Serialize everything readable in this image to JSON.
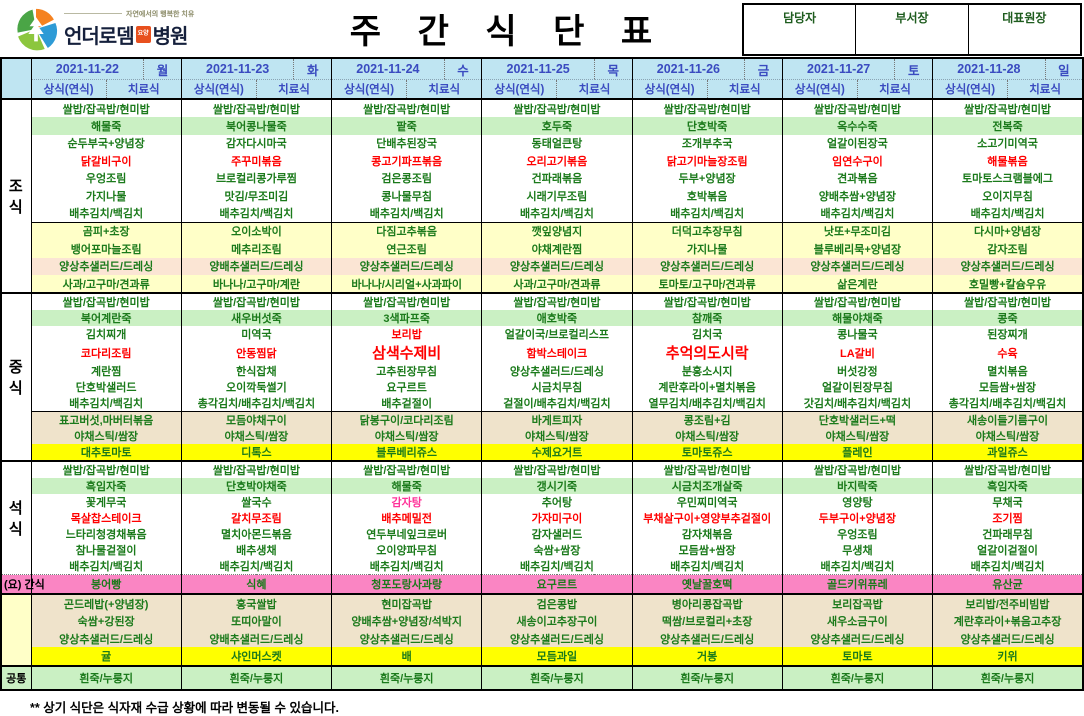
{
  "header": {
    "logo": {
      "tagline": "자연에서의 행복한 치유",
      "name_main": "언더로뎀",
      "name_badge": "요양",
      "name_suffix": "병원"
    },
    "title": "주 간 식 단 표",
    "approval": [
      "담당자",
      "부서장",
      "대표원장"
    ]
  },
  "days": [
    {
      "date": "2021-11-22",
      "dow": "월"
    },
    {
      "date": "2021-11-23",
      "dow": "화"
    },
    {
      "date": "2021-11-24",
      "dow": "수"
    },
    {
      "date": "2021-11-25",
      "dow": "목"
    },
    {
      "date": "2021-11-26",
      "dow": "금"
    },
    {
      "date": "2021-11-27",
      "dow": "토"
    },
    {
      "date": "2021-11-28",
      "dow": "일"
    }
  ],
  "meal_types": [
    "상식(연식)",
    "치료식"
  ],
  "colors": {
    "header_bg": "#BFE5F2",
    "header_text": "#3A4BC0",
    "item_text": "#1B7A1B",
    "special_text": "#FF0000",
    "accent_pink_text": "#FF3399",
    "porridge_bg": "#CAF0C3",
    "banchan_bg": "#FFFFC8",
    "salad_bg": "#FBE5D4",
    "tan_bg": "#EFE3CB",
    "juice_bg": "#FFFF00",
    "snack_bg": "#FA85C3"
  },
  "sections": [
    {
      "label": "조식",
      "label_style": "lbl-big",
      "label_bg": "w",
      "top": "solid",
      "rows": [
        {
          "bg": "w",
          "cells": [
            "쌀밥/잡곡밥/현미밥",
            "쌀밥/잡곡밥/현미밥",
            "쌀밥/잡곡밥/현미밥",
            "쌀밥/잡곡밥/현미밥",
            "쌀밥/잡곡밥/현미밥",
            "쌀밥/잡곡밥/현미밥",
            "쌀밥/잡곡밥/현미밥"
          ]
        },
        {
          "bg": "g",
          "cells": [
            "해물죽",
            "북어콩나물죽",
            "팥죽",
            "호두죽",
            "단호박죽",
            "옥수수죽",
            "전복죽"
          ]
        },
        {
          "bg": "w",
          "cells": [
            "순두부국+양념장",
            "감자다시마국",
            "단배추된장국",
            "동태얼큰탕",
            "조개부추국",
            "얼갈이된장국",
            "소고기미역국"
          ]
        },
        {
          "bg": "w",
          "fg": "red",
          "cells": [
            "닭갈비구이",
            "주꾸미볶음",
            "콩고기파프볶음",
            "오리고기볶음",
            "닭고기마늘장조림",
            "임연수구이",
            "해물볶음"
          ]
        },
        {
          "bg": "w",
          "cells": [
            "우엉조림",
            "브로컬리콩가루찜",
            "검은콩조림",
            "건파래볶음",
            "두부+양념장",
            "견과볶음",
            "토마토스크램블에그"
          ]
        },
        {
          "bg": "w",
          "cells": [
            "가지나물",
            "맛김/무조미김",
            "콩나물무침",
            "시래기무조림",
            "호박볶음",
            "양배추쌈+양념장",
            "오이지무침"
          ]
        },
        {
          "bg": "w",
          "cells": [
            "배추김치/백김치",
            "배추김치/백김치",
            "배추김치/백김치",
            "배추김치/백김치",
            "배추김치/백김치",
            "배추김치/백김치",
            "배추김치/백김치"
          ]
        },
        {
          "bg": "y",
          "div": true,
          "cells": [
            "곰피+초장",
            "오이소박이",
            "다짐고추볶음",
            "깻잎양념지",
            "더덕고추장무침",
            "낫또+무조미김",
            "다시마+양념장"
          ]
        },
        {
          "bg": "y",
          "cells": [
            "뱅어포마늘조림",
            "메추리조림",
            "연근조림",
            "야채계란찜",
            "가지나물",
            "블루베리묵+양념장",
            "감자조림"
          ]
        },
        {
          "bg": "p",
          "cells": [
            "양상추샐러드/드레싱",
            "양배추샐러드/드레싱",
            "양상추샐러드/드레싱",
            "양상추샐러드/드레싱",
            "양상추샐러드/드레싱",
            "양상추샐러드/드레싱",
            "양상추샐러드/드레싱"
          ]
        },
        {
          "bg": "y",
          "cells": [
            "사과/고구마/견과류",
            "바나나/고구마/계란",
            "바나나/시리얼+사과파이",
            "사과/고구마/견과류",
            "토마토/고구마/견과류",
            "삶은계란",
            "호밀빵+칼슘우유"
          ]
        }
      ]
    },
    {
      "label": "중식",
      "label_style": "lbl-big",
      "label_bg": "w",
      "top": "solid",
      "rows": [
        {
          "bg": "w",
          "cells": [
            "쌀밥/잡곡밥/현미밥",
            "쌀밥/잡곡밥/현미밥",
            "쌀밥/잡곡밥/현미밥",
            "쌀밥/잡곡밥/현미밥",
            "쌀밥/잡곡밥/현미밥",
            "쌀밥/잡곡밥/현미밥",
            "쌀밥/잡곡밥/현미밥"
          ]
        },
        {
          "bg": "g",
          "cells": [
            "북어계란죽",
            "새우버섯죽",
            "3색파프죽",
            "애호박죽",
            "참깨죽",
            "해물야채죽",
            "콩죽"
          ]
        },
        {
          "bg": "w",
          "cells": [
            "김치찌개",
            "미역국",
            {
              "t": "보리밥",
              "c": "red"
            },
            "얼갈이국/브로컬리스프",
            "김치국",
            "콩나물국",
            "된장찌개"
          ]
        },
        {
          "bg": "w",
          "fg": "red",
          "cells": [
            "코다리조림",
            "안동찜닭",
            {
              "t": "삼색수제비",
              "big": true
            },
            "함박스테이크",
            {
              "t": "추억의도시락",
              "big": true
            },
            "LA갈비",
            "수육"
          ]
        },
        {
          "bg": "w",
          "cells": [
            "계란찜",
            "한식잡채",
            "고추된장무침",
            "양상추샐러드/드레싱",
            "분홍소시지",
            "버섯강정",
            "멸치볶음"
          ]
        },
        {
          "bg": "w",
          "cells": [
            "단호박샐러드",
            "오이깍둑썰기",
            "요구르트",
            "시금치무침",
            "계란후라이+멸치볶음",
            "얼갈이된장무침",
            "모듬쌈+쌈장"
          ]
        },
        {
          "bg": "w",
          "cells": [
            "배추김치/백김치",
            "총각김치/배추김치/백김치",
            "배추겉절이",
            "겉절이/배추김치/백김치",
            "열무김치/배추김치/백김치",
            "갓김치/배추김치/백김치",
            "총각김치/배추김치/백김치"
          ]
        },
        {
          "bg": "t",
          "div": true,
          "cells": [
            "표고버섯,마버터볶음",
            "모듬야채구이",
            "닭봉구이/코다리조림",
            "바게트피자",
            "콩조림+김",
            "단호박샐러드+떡",
            "새송이들기름구이"
          ]
        },
        {
          "bg": "t",
          "cells": [
            "야채스틱/쌈장",
            "야채스틱/쌈장",
            "야채스틱/쌈장",
            "야채스틱/쌈장",
            "야채스틱/쌈장",
            "야채스틱/쌈장",
            "야채스틱/쌈장"
          ]
        },
        {
          "bg": "b",
          "cells": [
            "대추토마토",
            "디톡스",
            "블루베리쥬스",
            "수제요거트",
            "토마토쥬스",
            "플레인",
            "과일쥬스"
          ]
        }
      ]
    },
    {
      "label": "석식",
      "label_style": "lbl-big",
      "label_bg": "w",
      "top": "solid",
      "rows": [
        {
          "bg": "w",
          "cells": [
            "쌀밥/잡곡밥/현미밥",
            "쌀밥/잡곡밥/현미밥",
            "쌀밥/잡곡밥/현미밥",
            "쌀밥/잡곡밥/현미밥",
            "쌀밥/잡곡밥/현미밥",
            "쌀밥/잡곡밥/현미밥",
            "쌀밥/잡곡밥/현미밥"
          ]
        },
        {
          "bg": "g",
          "cells": [
            "흑임자죽",
            "단호박야채죽",
            "해물죽",
            "갱시기죽",
            "시금치조개살죽",
            "바지락죽",
            "흑임자죽"
          ]
        },
        {
          "bg": "w",
          "cells": [
            "꽃게무국",
            "쌀국수",
            {
              "t": "감자탕",
              "c": "pink"
            },
            "추어탕",
            "우민찌미역국",
            "영양탕",
            "무채국"
          ]
        },
        {
          "bg": "w",
          "fg": "red",
          "cells": [
            "목살찹스테이크",
            "갈치무조림",
            "배추메밀전",
            "가자미구이",
            "부채살구이+영양부추겉절이",
            "두부구이+양념장",
            "조기찜"
          ]
        },
        {
          "bg": "w",
          "cells": [
            "느타리청경채볶음",
            "멸치아몬드볶음",
            "연두부네잎크로버",
            "감자샐러드",
            "감자채볶음",
            "우엉조림",
            "건파래무침"
          ]
        },
        {
          "bg": "w",
          "cells": [
            "참나물겉절이",
            "배추생채",
            "오이양파무침",
            "숙쌈+쌈장",
            "모듬쌈+쌈장",
            "무생채",
            "얼갈이겉절이"
          ]
        },
        {
          "bg": "w",
          "cells": [
            "배추김치/백김치",
            "배추김치/백김치",
            "배추김치/백김치",
            "배추김치/백김치",
            "배추김치/백김치",
            "배추김치/백김치",
            "배추김치/백김치"
          ]
        }
      ]
    },
    {
      "label": "(요) 간식",
      "label_style": "lbl-snack",
      "label_bg": "k",
      "top": "dotted",
      "rows": [
        {
          "bg": "k",
          "cells": [
            "붕어빵",
            "식혜",
            "청포도랑사과랑",
            "요구르트",
            "옛날꿀호떡",
            "골드키위퓨레",
            "유산균"
          ]
        }
      ]
    },
    {
      "label": "",
      "label_style": "lbl-sm",
      "label_bg": "y",
      "top": "solid",
      "rows": [
        {
          "bg": "t",
          "cells": [
            "곤드레밥(+양념장)",
            "홍국쌀밥",
            "현미잡곡밥",
            "검은콩밥",
            "병아리콩잡곡밥",
            "보리잡곡밥",
            "보리밥/전주비빔밥"
          ]
        },
        {
          "bg": "t",
          "cells": [
            "숙쌈+강된장",
            "또띠아말이",
            "양배추쌈+양념장/석박지",
            "새송이고추장구이",
            "떡쌈/브로컬리+초장",
            "새우소금구이",
            "계란후라이+볶음고추장"
          ]
        },
        {
          "bg": "t",
          "cells": [
            "양상추샐러드/드레싱",
            "양배추샐러드/드레싱",
            "양상추샐러드/드레싱",
            "양상추샐러드/드레싱",
            "양상추샐러드/드레싱",
            "양상추샐러드/드레싱",
            "양상추샐러드/드레싱"
          ]
        },
        {
          "bg": "b",
          "cells": [
            "귤",
            "샤인머스켓",
            "배",
            "모듬과일",
            "거봉",
            "토마토",
            "키위"
          ]
        }
      ]
    },
    {
      "label": "공통",
      "label_style": "lbl-sm",
      "label_bg": "g",
      "top": "solid",
      "rows": [
        {
          "bg": "g",
          "cells": [
            "흰죽/누룽지",
            "흰죽/누룽지",
            "흰죽/누룽지",
            "흰죽/누룽지",
            "흰죽/누룽지",
            "흰죽/누룽지",
            "흰죽/누룽지"
          ]
        }
      ]
    }
  ],
  "footer": "** 상기 식단은 식자재 수급 상황에 따라 변동될 수 있습니다."
}
